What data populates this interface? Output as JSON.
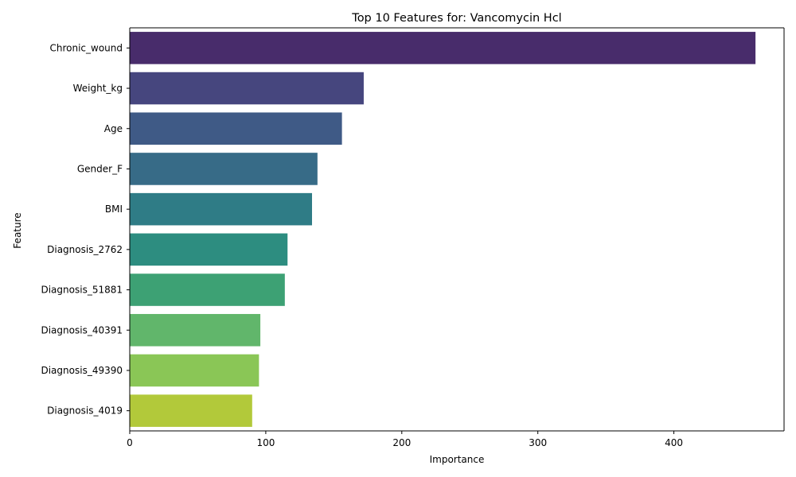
{
  "chart_data": {
    "type": "bar",
    "orientation": "horizontal",
    "title": "Top 10 Features for: Vancomycin Hcl",
    "xlabel": "Importance",
    "ylabel": "Feature",
    "categories": [
      "Chronic_wound",
      "Weight_kg",
      "Age",
      "Gender_F",
      "BMI",
      "Diagnosis_2762",
      "Diagnosis_51881",
      "Diagnosis_40391",
      "Diagnosis_49390",
      "Diagnosis_4019"
    ],
    "values": [
      460,
      172,
      156,
      138,
      134,
      116,
      114,
      96,
      95,
      90
    ],
    "colors": [
      "#482C6B",
      "#46467E",
      "#3F5A86",
      "#376B87",
      "#2F7C86",
      "#2D8D80",
      "#3DA174",
      "#61B66B",
      "#8AC656",
      "#B2C93A"
    ],
    "xlim": [
      0,
      481
    ],
    "xticks": [
      0,
      100,
      200,
      300,
      400
    ],
    "grid": false,
    "legend": "none"
  }
}
